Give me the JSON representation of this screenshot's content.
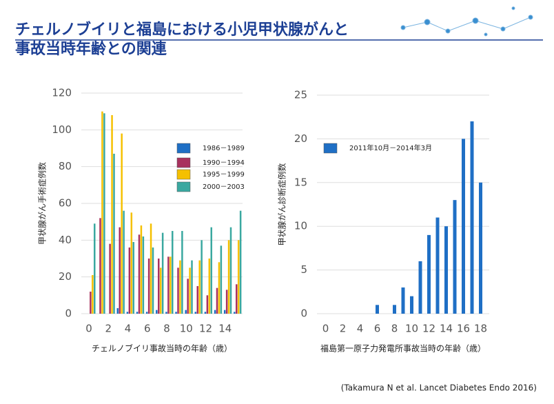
{
  "title": [
    "チェルノブイリと福島における小児甲状腺がんと",
    "事故当時年齢との関連"
  ],
  "citation": "(Takamura N et al. Lancet Diabetes Endo 2016)",
  "chart_data": [
    {
      "type": "bar",
      "y_label": "甲状腺がん手術症例数",
      "x_label": "チェルノブイリ事故当時の年齢（歳）",
      "categories": [
        "0",
        null,
        "2",
        null,
        "4",
        null,
        "6",
        null,
        "8",
        null,
        "10",
        null,
        "12",
        null,
        "14",
        null
      ],
      "series": [
        {
          "name": "1986－1989",
          "color": "#1f6fc5",
          "values": [
            0,
            0,
            0,
            3,
            1,
            1,
            1,
            2,
            1,
            1,
            2,
            1,
            1,
            2,
            2,
            1
          ]
        },
        {
          "name": "1990－1994",
          "color": "#a8325e",
          "values": [
            12,
            52,
            38,
            47,
            36,
            43,
            30,
            30,
            31,
            25,
            19,
            15,
            10,
            14,
            13,
            16
          ]
        },
        {
          "name": "1995－1999",
          "color": "#f5c000",
          "values": [
            21,
            110,
            108,
            98,
            55,
            48,
            49,
            25,
            31,
            29,
            25,
            29,
            30,
            28,
            40,
            40
          ]
        },
        {
          "name": "2000－2003",
          "color": "#3aa8a0",
          "values": [
            49,
            109,
            87,
            56,
            39,
            42,
            36,
            44,
            45,
            45,
            29,
            40,
            47,
            37,
            47,
            56
          ]
        }
      ],
      "ylim": [
        0,
        120
      ],
      "yticks": [
        0,
        20,
        40,
        60,
        80,
        100,
        120
      ],
      "grid": true
    },
    {
      "type": "bar",
      "y_label": "甲状腺がん診断症例数",
      "x_label": "福島第一原子力発電所事故当時の年齢（歳）",
      "x": [
        6,
        8,
        9,
        10,
        11,
        12,
        13,
        14,
        15,
        16,
        17,
        18
      ],
      "series": [
        {
          "name": "2011年10月－2014年3月",
          "color": "#1f6fc5",
          "values": [
            1,
            1,
            3,
            2,
            6,
            9,
            11,
            10,
            13,
            20,
            22,
            15
          ]
        }
      ],
      "xlim": [
        -1,
        19
      ],
      "xticks": [
        0,
        2,
        4,
        6,
        8,
        10,
        12,
        14,
        16,
        18
      ],
      "ylim": [
        0,
        25
      ],
      "yticks": [
        0,
        5,
        10,
        15,
        20,
        25
      ],
      "grid": true
    }
  ]
}
